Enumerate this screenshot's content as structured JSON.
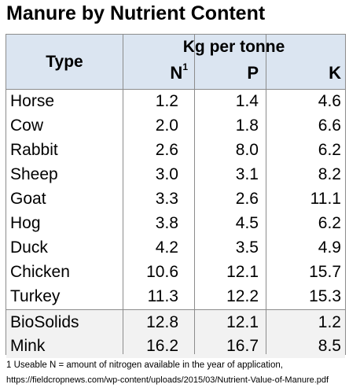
{
  "title": "Manure by Nutrient Content",
  "table": {
    "type_header": "Type",
    "unit_header": "Kg per tonne",
    "columns": [
      {
        "label": "N",
        "sup": "1"
      },
      {
        "label": "P",
        "sup": ""
      },
      {
        "label": "K",
        "sup": ""
      }
    ],
    "rows": [
      {
        "type": "Horse",
        "n": "1.2",
        "p": "1.4",
        "k": "4.6"
      },
      {
        "type": "Cow",
        "n": "2.0",
        "p": "1.8",
        "k": "6.6"
      },
      {
        "type": "Rabbit",
        "n": "2.6",
        "p": "8.0",
        "k": "6.2"
      },
      {
        "type": "Sheep",
        "n": "3.0",
        "p": "3.1",
        "k": "8.2"
      },
      {
        "type": "Goat",
        "n": "3.3",
        "p": "2.6",
        "k": "11.1"
      },
      {
        "type": "Hog",
        "n": "3.8",
        "p": "4.5",
        "k": "6.2"
      },
      {
        "type": "Duck",
        "n": "4.2",
        "p": "3.5",
        "k": "4.9"
      },
      {
        "type": "Chicken",
        "n": "10.6",
        "p": "12.1",
        "k": "15.7"
      },
      {
        "type": "Turkey",
        "n": "11.3",
        "p": "12.2",
        "k": "15.3"
      },
      {
        "type": "BioSolids",
        "n": "12.8",
        "p": "12.1",
        "k": "1.2"
      },
      {
        "type": "Mink",
        "n": "16.2",
        "p": "16.7",
        "k": "8.5"
      }
    ]
  },
  "footnote": "1 Useable N = amount of nitrogen available in the year of application,",
  "source": "https://fieldcropnews.com/wp-content/uploads/2015/03/Nutrient-Value-of-Manure.pdf",
  "colors": {
    "header_bg": "#dbe5f1",
    "alt_row_bg": "#f2f2f2",
    "border": "#8c8c8c"
  }
}
